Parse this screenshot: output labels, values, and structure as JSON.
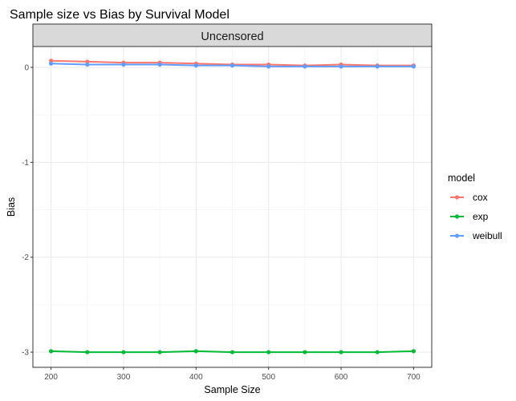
{
  "chart_data": {
    "type": "line",
    "title": "Sample size vs Bias by Survival Model",
    "facet_label": "Uncensored",
    "xlabel": "Sample Size",
    "ylabel": "Bias",
    "xlim": [
      175,
      725
    ],
    "ylim": [
      -3.16,
      0.22
    ],
    "x_ticks": [
      200,
      300,
      400,
      500,
      600,
      700
    ],
    "y_ticks": [
      0,
      -1,
      -2,
      -3
    ],
    "grid": true,
    "legend_title": "model",
    "legend_position": "right",
    "x": [
      200,
      250,
      300,
      350,
      400,
      450,
      500,
      550,
      600,
      650,
      700
    ],
    "series": [
      {
        "name": "cox",
        "color": "#F8766D",
        "values": [
          0.07,
          0.06,
          0.05,
          0.05,
          0.04,
          0.03,
          0.03,
          0.02,
          0.03,
          0.02,
          0.02
        ]
      },
      {
        "name": "exp",
        "color": "#00BA38",
        "values": [
          -2.99,
          -3.0,
          -3.0,
          -3.0,
          -2.99,
          -3.0,
          -3.0,
          -3.0,
          -3.0,
          -3.0,
          -2.99
        ]
      },
      {
        "name": "weibull",
        "color": "#619CFF",
        "values": [
          0.04,
          0.03,
          0.03,
          0.03,
          0.02,
          0.02,
          0.01,
          0.01,
          0.01,
          0.01,
          0.01
        ]
      }
    ]
  }
}
